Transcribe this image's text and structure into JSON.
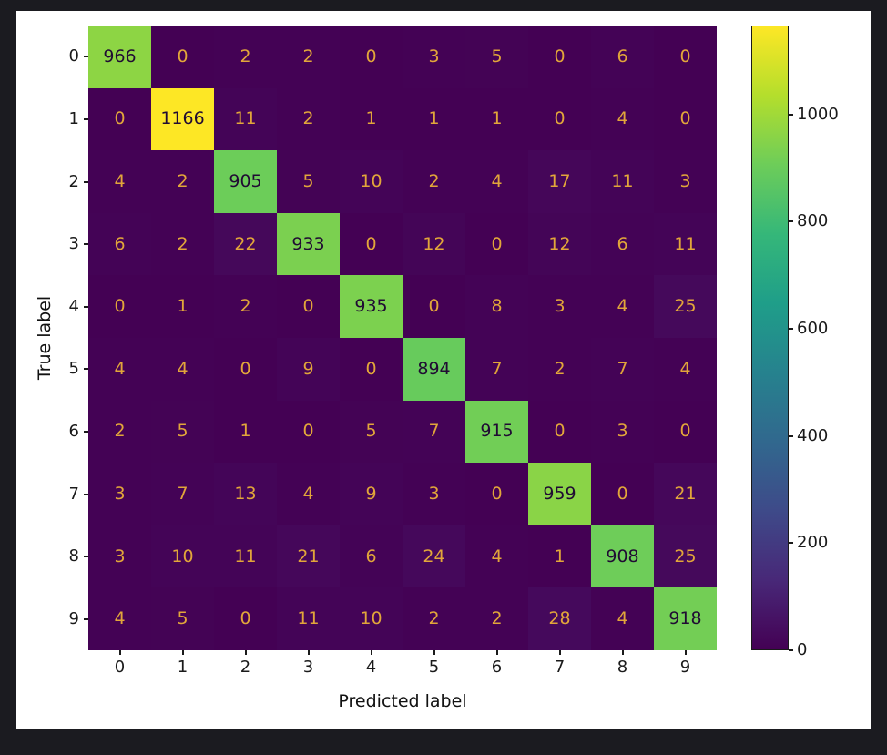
{
  "window": {
    "background_color": "#1b1b20",
    "figure_background_color": "#ffffff"
  },
  "chart_data": {
    "type": "heatmap",
    "subtype": "confusion-matrix",
    "title": "",
    "xlabel": "Predicted label",
    "ylabel": "True label",
    "x_tick_labels": [
      "0",
      "1",
      "2",
      "3",
      "4",
      "5",
      "6",
      "7",
      "8",
      "9"
    ],
    "y_tick_labels": [
      "0",
      "1",
      "2",
      "3",
      "4",
      "5",
      "6",
      "7",
      "8",
      "9"
    ],
    "matrix": [
      [
        966,
        0,
        2,
        2,
        0,
        3,
        5,
        0,
        6,
        0
      ],
      [
        0,
        1166,
        11,
        2,
        1,
        1,
        1,
        0,
        4,
        0
      ],
      [
        4,
        2,
        905,
        5,
        10,
        2,
        4,
        17,
        11,
        3
      ],
      [
        6,
        2,
        22,
        933,
        0,
        12,
        0,
        12,
        6,
        11
      ],
      [
        0,
        1,
        2,
        0,
        935,
        0,
        8,
        3,
        4,
        25
      ],
      [
        4,
        4,
        0,
        9,
        0,
        894,
        7,
        2,
        7,
        4
      ],
      [
        2,
        5,
        1,
        0,
        5,
        7,
        915,
        0,
        3,
        0
      ],
      [
        3,
        7,
        13,
        4,
        9,
        3,
        0,
        959,
        0,
        21
      ],
      [
        3,
        10,
        11,
        21,
        6,
        24,
        4,
        1,
        908,
        25
      ],
      [
        4,
        5,
        0,
        11,
        10,
        2,
        2,
        28,
        4,
        918
      ]
    ],
    "vmin": 0,
    "vmax": 1166,
    "colormap": "viridis",
    "colormap_stops": [
      "#440154",
      "#482878",
      "#3e4a89",
      "#31688e",
      "#26828e",
      "#1f9e89",
      "#35b779",
      "#6dcd59",
      "#b4de2c",
      "#fde725"
    ],
    "colorbar_ticks": [
      "0",
      "200",
      "400",
      "600",
      "800",
      "1000"
    ],
    "legend_position": "colorbar-right",
    "grid": false,
    "cell_text_light": "#e2a63a",
    "cell_text_dark": "#200b33",
    "axis_text_color": "#1a1a1a"
  }
}
